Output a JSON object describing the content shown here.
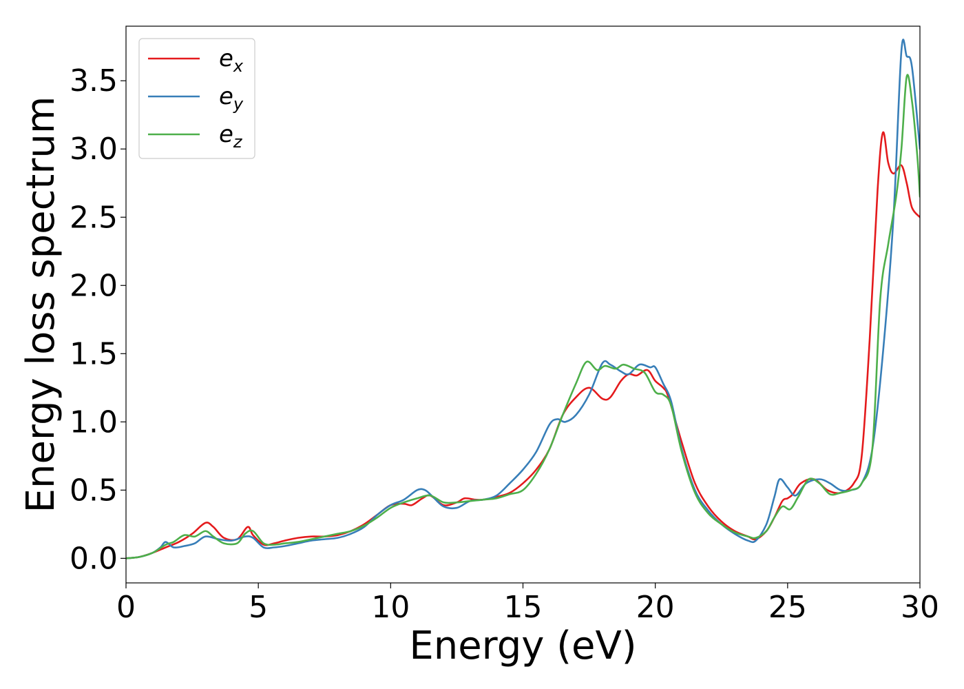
{
  "chart_data": {
    "type": "line",
    "xlabel": "Energy (eV)",
    "ylabel": "Energy loss spectrum",
    "xlim": [
      0,
      30
    ],
    "ylim": [
      -0.18,
      3.9
    ],
    "xticks": [
      0,
      5,
      10,
      15,
      20,
      25,
      30
    ],
    "xtick_labels": [
      "0",
      "5",
      "10",
      "15",
      "20",
      "25",
      "30"
    ],
    "yticks": [
      0.0,
      0.5,
      1.0,
      1.5,
      2.0,
      2.5,
      3.0,
      3.5
    ],
    "ytick_labels": [
      "0.0",
      "0.5",
      "1.0",
      "1.5",
      "2.0",
      "2.5",
      "3.0",
      "3.5"
    ],
    "grid": false,
    "legend_position": "top-left",
    "series": [
      {
        "name": "e",
        "subscript": "x",
        "color": "#e41a1c",
        "x": [
          0,
          0.5,
          1,
          1.5,
          2,
          2.5,
          3,
          3.3,
          3.7,
          4.2,
          4.6,
          4.8,
          5.2,
          5.6,
          6,
          6.5,
          7,
          7.5,
          8,
          8.5,
          9,
          9.5,
          10,
          10.5,
          10.8,
          11.2,
          11.5,
          12,
          12.5,
          12.8,
          13.2,
          13.5,
          14,
          14.5,
          15,
          15.5,
          16,
          16.5,
          17,
          17.5,
          18,
          18.3,
          18.7,
          19,
          19.3,
          19.7,
          20,
          20.3,
          20.5,
          21,
          21.5,
          22,
          22.5,
          23,
          23.5,
          23.8,
          24.2,
          24.5,
          24.8,
          25,
          25.2,
          25.5,
          26,
          26.5,
          27,
          27.5,
          27.8,
          28.1,
          28.4,
          28.6,
          28.8,
          29,
          29.3,
          29.5,
          29.7,
          30
        ],
        "y": [
          0,
          0.01,
          0.04,
          0.08,
          0.12,
          0.18,
          0.26,
          0.23,
          0.15,
          0.14,
          0.23,
          0.17,
          0.1,
          0.11,
          0.13,
          0.15,
          0.16,
          0.16,
          0.17,
          0.2,
          0.25,
          0.32,
          0.39,
          0.4,
          0.39,
          0.44,
          0.46,
          0.39,
          0.41,
          0.44,
          0.43,
          0.43,
          0.45,
          0.48,
          0.55,
          0.65,
          0.8,
          1.05,
          1.18,
          1.25,
          1.17,
          1.18,
          1.3,
          1.35,
          1.34,
          1.38,
          1.3,
          1.25,
          1.18,
          0.85,
          0.55,
          0.38,
          0.27,
          0.2,
          0.16,
          0.14,
          0.2,
          0.3,
          0.42,
          0.44,
          0.47,
          0.55,
          0.58,
          0.5,
          0.48,
          0.55,
          0.75,
          1.6,
          2.7,
          3.12,
          2.9,
          2.82,
          2.88,
          2.75,
          2.57,
          2.5
        ]
      },
      {
        "name": "e",
        "subscript": "y",
        "color": "#377eb8",
        "x": [
          0,
          0.5,
          1,
          1.3,
          1.5,
          1.8,
          2.2,
          2.6,
          3,
          3.5,
          4,
          4.5,
          4.8,
          5.2,
          5.6,
          6,
          6.5,
          7,
          7.5,
          8,
          8.5,
          9,
          9.5,
          10,
          10.5,
          11,
          11.3,
          11.6,
          12,
          12.5,
          13,
          13.5,
          14,
          14.5,
          15,
          15.5,
          16,
          16.3,
          16.6,
          17,
          17.5,
          18,
          18.3,
          18.7,
          19,
          19.4,
          19.8,
          20,
          20.3,
          20.6,
          21,
          21.5,
          22,
          22.5,
          23,
          23.5,
          23.8,
          24.2,
          24.5,
          24.7,
          25,
          25.3,
          25.7,
          26.2,
          26.6,
          27,
          27.4,
          27.8,
          28.2,
          28.6,
          29,
          29.3,
          29.5,
          29.7,
          30
        ],
        "y": [
          0,
          0.01,
          0.04,
          0.08,
          0.12,
          0.08,
          0.09,
          0.11,
          0.16,
          0.14,
          0.13,
          0.16,
          0.15,
          0.08,
          0.08,
          0.09,
          0.11,
          0.13,
          0.14,
          0.15,
          0.18,
          0.23,
          0.32,
          0.39,
          0.43,
          0.5,
          0.5,
          0.45,
          0.38,
          0.37,
          0.42,
          0.43,
          0.46,
          0.55,
          0.65,
          0.78,
          0.98,
          1.02,
          1.0,
          1.05,
          1.2,
          1.43,
          1.42,
          1.37,
          1.35,
          1.42,
          1.4,
          1.4,
          1.28,
          1.15,
          0.8,
          0.5,
          0.35,
          0.25,
          0.18,
          0.13,
          0.13,
          0.25,
          0.45,
          0.58,
          0.52,
          0.46,
          0.55,
          0.58,
          0.55,
          0.5,
          0.5,
          0.55,
          0.8,
          1.5,
          2.5,
          3.72,
          3.68,
          3.6,
          3.0
        ]
      },
      {
        "name": "e",
        "subscript": "z",
        "color": "#4daf4a",
        "x": [
          0,
          0.5,
          1,
          1.5,
          1.8,
          2.2,
          2.6,
          3,
          3.3,
          3.7,
          4.2,
          4.5,
          4.8,
          5.2,
          5.6,
          6,
          6.5,
          7,
          7.5,
          8,
          8.5,
          9,
          9.5,
          10,
          10.5,
          11,
          11.5,
          12,
          12.5,
          13,
          13.5,
          14,
          14.5,
          15,
          15.5,
          16,
          16.5,
          17,
          17.4,
          17.8,
          18.1,
          18.5,
          18.8,
          19.2,
          19.6,
          20,
          20.3,
          20.6,
          21,
          21.5,
          22,
          22.5,
          23,
          23.5,
          23.8,
          24.2,
          24.5,
          24.8,
          25.1,
          25.4,
          25.8,
          26.2,
          26.6,
          27,
          27.4,
          27.8,
          28.2,
          28.5,
          28.8,
          29.1,
          29.3,
          29.5,
          29.7,
          29.9,
          30
        ],
        "y": [
          0,
          0.01,
          0.04,
          0.1,
          0.12,
          0.17,
          0.16,
          0.2,
          0.16,
          0.11,
          0.11,
          0.18,
          0.2,
          0.11,
          0.1,
          0.11,
          0.12,
          0.14,
          0.16,
          0.18,
          0.2,
          0.24,
          0.3,
          0.37,
          0.41,
          0.44,
          0.46,
          0.41,
          0.41,
          0.42,
          0.43,
          0.44,
          0.47,
          0.5,
          0.62,
          0.8,
          1.05,
          1.28,
          1.44,
          1.38,
          1.41,
          1.39,
          1.42,
          1.39,
          1.36,
          1.22,
          1.2,
          1.12,
          0.78,
          0.48,
          0.33,
          0.25,
          0.19,
          0.16,
          0.15,
          0.2,
          0.3,
          0.38,
          0.36,
          0.45,
          0.58,
          0.55,
          0.47,
          0.48,
          0.5,
          0.55,
          0.8,
          1.9,
          2.3,
          2.65,
          3.0,
          3.53,
          3.35,
          2.95,
          2.65
        ]
      }
    ]
  }
}
